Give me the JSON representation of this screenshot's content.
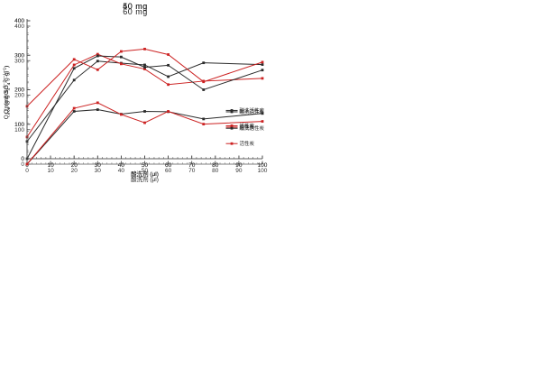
{
  "page": {
    "background": "#ffffff"
  },
  "legend": {
    "entries": [
      {
        "label": "酸洗活性炭",
        "color": "#2b2b2b",
        "marker": "square"
      },
      {
        "label": "活性炭",
        "color": "#cc2222",
        "marker": "square"
      }
    ],
    "position": "inside-right"
  },
  "axes_shared": {
    "xlabel": "酸洗剂 (μl)",
    "ylabel": "Qe (mg SO42−·g−1)",
    "ylabel_segments": [
      {
        "t": "Q",
        "s": "n"
      },
      {
        "t": "e",
        "s": "sub"
      },
      {
        "t": " (mg SO",
        "s": "n"
      },
      {
        "t": "4",
        "s": "sub"
      },
      {
        "t": "2−",
        "s": "sup"
      },
      {
        "t": "·g",
        "s": "n"
      },
      {
        "t": "−1",
        "s": "sup"
      },
      {
        "t": ")",
        "s": "n"
      }
    ],
    "xlim": [
      0,
      100
    ],
    "ylim": [
      0,
      400
    ],
    "xticks": [
      0,
      10,
      20,
      30,
      40,
      50,
      60,
      70,
      80,
      90,
      100
    ],
    "yticks": [
      0,
      100,
      200,
      300,
      400
    ],
    "x_minor_step": 2,
    "y_minor_step": 20,
    "grid": false
  },
  "chart_data": [
    {
      "type": "line",
      "title": "40 mg",
      "x": [
        0,
        20,
        30,
        40,
        50,
        60,
        75,
        100
      ],
      "series": [
        {
          "name": "酸洗活性炭",
          "color": "#2b2b2b",
          "values": [
            50,
            228,
            283,
            277,
            272,
            238,
            278,
            273
          ]
        },
        {
          "name": "活性炭",
          "color": "#cc2222",
          "values": [
            63,
            272,
            303,
            275,
            260,
            215,
            225,
            233
          ]
        }
      ],
      "legend_y": 0.65
    },
    {
      "type": "line",
      "title": "50 mg",
      "x": [
        0,
        20,
        30,
        40,
        50,
        60,
        75,
        100
      ],
      "series": [
        {
          "name": "酸洗活性炭",
          "color": "#2b2b2b",
          "values": [
            0,
            262,
            298,
            295,
            265,
            271,
            200,
            257
          ]
        },
        {
          "name": "活性炭",
          "color": "#cc2222",
          "values": [
            152,
            288,
            258,
            311,
            318,
            302,
            223,
            280
          ]
        }
      ],
      "legend_y": 0.66
    },
    {
      "type": "line",
      "title": "60 mg",
      "x": [
        0,
        20,
        30,
        40,
        50,
        60,
        75,
        100
      ],
      "series": [
        {
          "name": "酸洗活性炭",
          "color": "#2b2b2b",
          "values": [
            0,
            153,
            158,
            145,
            153,
            152,
            131,
            147
          ]
        },
        {
          "name": "活性炭",
          "color": "#cc2222",
          "values": [
            0,
            162,
            178,
            144,
            120,
            153,
            116,
            124
          ]
        }
      ],
      "legend_y": 0.74
    }
  ]
}
